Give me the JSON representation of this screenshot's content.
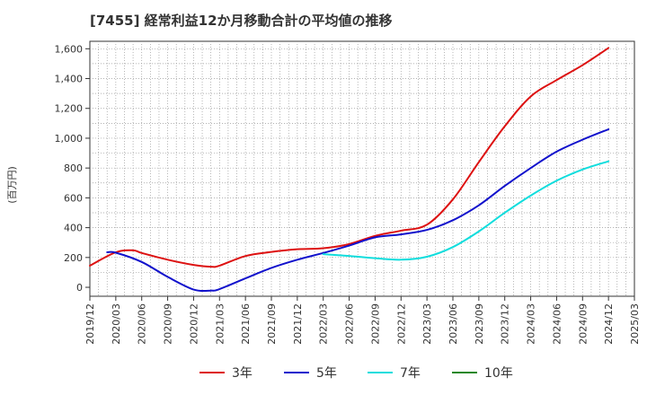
{
  "chart_data": {
    "type": "line",
    "title": "[7455]  経常利益12か月移動合計の平均値の推移",
    "ylabel": "(百万円)",
    "xlabel": "",
    "ylim": [
      -60,
      1650
    ],
    "yticks": [
      0,
      200,
      400,
      600,
      800,
      1000,
      1200,
      1400,
      1600
    ],
    "ytick_labels": [
      "0",
      "200",
      "400",
      "600",
      "800",
      "1,000",
      "1,200",
      "1,400",
      "1,600"
    ],
    "xlim": [
      "2019-12",
      "2025-03"
    ],
    "xtick_labels": [
      "2019/12",
      "2020/03",
      "2020/06",
      "2020/09",
      "2020/12",
      "2021/03",
      "2021/06",
      "2021/09",
      "2021/12",
      "2022/03",
      "2022/06",
      "2022/09",
      "2022/12",
      "2023/03",
      "2023/06",
      "2023/09",
      "2023/12",
      "2024/03",
      "2024/06",
      "2024/09",
      "2024/12",
      "2025/03"
    ],
    "grid": true,
    "legend_position": "bottom",
    "series": [
      {
        "name": "3年",
        "color": "#dd1111",
        "x": [
          "2019-12",
          "2020-03",
          "2020-05",
          "2020-06",
          "2020-09",
          "2020-12",
          "2021-02",
          "2021-03",
          "2021-06",
          "2021-09",
          "2021-12",
          "2022-03",
          "2022-06",
          "2022-09",
          "2022-12",
          "2023-03",
          "2023-06",
          "2023-09",
          "2023-12",
          "2024-03",
          "2024-06",
          "2024-09",
          "2024-12"
        ],
        "y": [
          145,
          235,
          248,
          230,
          185,
          150,
          138,
          145,
          210,
          237,
          255,
          262,
          290,
          345,
          380,
          420,
          590,
          840,
          1080,
          1280,
          1390,
          1490,
          1605
        ]
      },
      {
        "name": "5年",
        "color": "#1111cc",
        "x": [
          "2020-02",
          "2020-03",
          "2020-06",
          "2020-09",
          "2020-12",
          "2021-02",
          "2021-03",
          "2021-06",
          "2021-09",
          "2021-12",
          "2022-03",
          "2022-06",
          "2022-09",
          "2022-12",
          "2023-03",
          "2023-06",
          "2023-09",
          "2023-12",
          "2024-03",
          "2024-06",
          "2024-09",
          "2024-12"
        ],
        "y": [
          235,
          232,
          170,
          70,
          -15,
          -22,
          -12,
          60,
          130,
          185,
          230,
          280,
          335,
          355,
          385,
          450,
          550,
          680,
          800,
          910,
          990,
          1060
        ]
      },
      {
        "name": "7年",
        "color": "#11dddd",
        "x": [
          "2022-03",
          "2022-06",
          "2022-09",
          "2022-12",
          "2023-03",
          "2023-06",
          "2023-09",
          "2023-12",
          "2024-03",
          "2024-06",
          "2024-09",
          "2024-12"
        ],
        "y": [
          222,
          210,
          195,
          185,
          205,
          270,
          375,
          500,
          615,
          715,
          790,
          845
        ]
      },
      {
        "name": "10年",
        "color": "#228822",
        "x": [],
        "y": []
      }
    ]
  }
}
